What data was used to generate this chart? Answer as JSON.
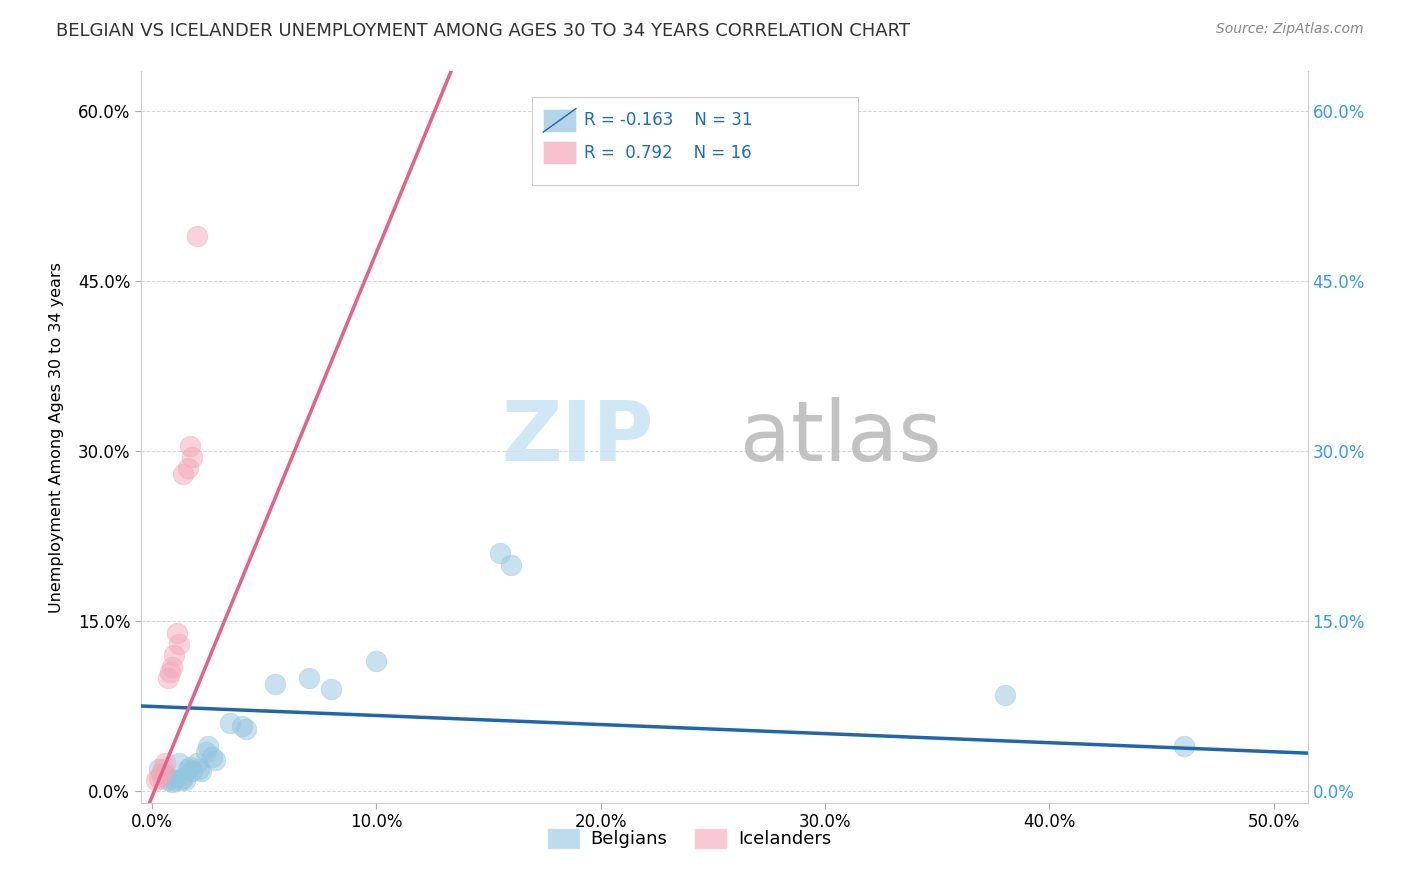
{
  "title": "BELGIAN VS ICELANDER UNEMPLOYMENT AMONG AGES 30 TO 34 YEARS CORRELATION CHART",
  "source": "Source: ZipAtlas.com",
  "ylabel_label": "Unemployment Among Ages 30 to 34 years",
  "xlim": [
    -0.005,
    0.515
  ],
  "ylim": [
    -0.01,
    0.635
  ],
  "xticks": [
    0.0,
    0.1,
    0.2,
    0.3,
    0.4,
    0.5
  ],
  "yticks": [
    0.0,
    0.15,
    0.3,
    0.45,
    0.6
  ],
  "legend_r_belgian": "-0.163",
  "legend_n_belgian": "31",
  "legend_r_icelander": "0.792",
  "legend_n_icelander": "16",
  "belgian_color": "#92c5de",
  "icelander_color": "#f4a6b8",
  "belgian_line_color": "#2166ac",
  "icelander_line_color": "#e8608a",
  "belgian_x": [
    0.003,
    0.005,
    0.007,
    0.008,
    0.009,
    0.01,
    0.012,
    0.013,
    0.014,
    0.015,
    0.016,
    0.017,
    0.018,
    0.02,
    0.021,
    0.022,
    0.024,
    0.025,
    0.027,
    0.028,
    0.035,
    0.04,
    0.042,
    0.055,
    0.07,
    0.08,
    0.1,
    0.155,
    0.16,
    0.38,
    0.46
  ],
  "belgian_y": [
    0.02,
    0.015,
    0.01,
    0.012,
    0.008,
    0.01,
    0.025,
    0.01,
    0.012,
    0.01,
    0.02,
    0.022,
    0.018,
    0.025,
    0.02,
    0.018,
    0.035,
    0.04,
    0.03,
    0.028,
    0.06,
    0.058,
    0.055,
    0.095,
    0.1,
    0.09,
    0.115,
    0.21,
    0.2,
    0.085,
    0.04
  ],
  "icelander_x": [
    0.002,
    0.003,
    0.004,
    0.005,
    0.006,
    0.007,
    0.008,
    0.009,
    0.01,
    0.011,
    0.012,
    0.014,
    0.016,
    0.017,
    0.018,
    0.02
  ],
  "icelander_y": [
    0.01,
    0.012,
    0.015,
    0.02,
    0.025,
    0.1,
    0.105,
    0.11,
    0.12,
    0.14,
    0.13,
    0.28,
    0.285,
    0.305,
    0.295,
    0.49
  ]
}
